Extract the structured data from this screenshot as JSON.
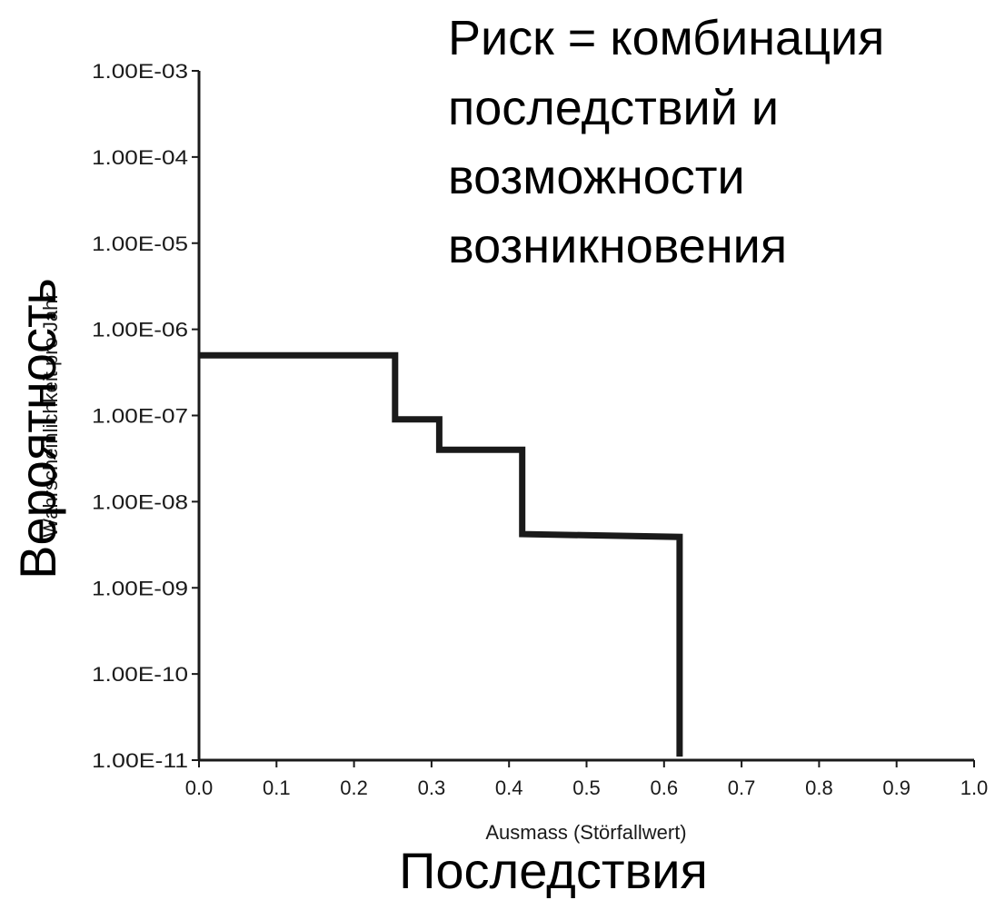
{
  "chart_data": {
    "type": "line",
    "step": true,
    "headline_lines": [
      "Риск = комбинация",
      "последствий и",
      "возможности",
      "возникновения"
    ],
    "overlay_ylabel": "Вероятность",
    "overlay_xlabel": "Последствия",
    "xlabel": "Ausmass (Störfallwert)",
    "ylabel": "Wahrscheinlichkeit pro Jahr",
    "x_ticks": [
      "0.0",
      "0.1",
      "0.2",
      "0.3",
      "0.4",
      "0.5",
      "0.6",
      "0.7",
      "0.8",
      "0.9",
      "1.0"
    ],
    "y_ticks": [
      "1.00E-11",
      "1.00E-10",
      "1.00E-09",
      "1.00E-08",
      "1.00E-07",
      "1.00E-06",
      "1.00E-05",
      "1.00E-04",
      "1.00E-03"
    ],
    "xlim": [
      0,
      1
    ],
    "ylim": [
      1e-11,
      0.001
    ],
    "yscale": "log",
    "grid": false,
    "series": [
      {
        "color": "#1a1a1a",
        "x": [
          0.0,
          0.253,
          0.253,
          0.31,
          0.31,
          0.417,
          0.417,
          0.62,
          0.62
        ],
        "y": [
          5e-07,
          5e-07,
          9e-08,
          9e-08,
          4e-08,
          4e-08,
          4.2e-09,
          3.9e-09,
          1.1e-11
        ]
      }
    ]
  }
}
